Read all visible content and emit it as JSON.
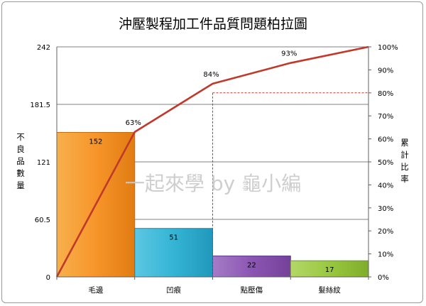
{
  "chart_data": {
    "type": "bar",
    "title": "沖壓製程加工件品質問題柏拉圖",
    "ylabel": "不良品數量",
    "ylabel_right": "累計比率",
    "categories": [
      "毛邊",
      "凹痕",
      "點壓傷",
      "髮絲紋"
    ],
    "series": [
      {
        "kind": "bar",
        "values": [
          152,
          51,
          22,
          17
        ]
      },
      {
        "kind": "line",
        "cumulative_percent": [
          0,
          63,
          84,
          93,
          100
        ],
        "labels": [
          "63%",
          "84%",
          "93%"
        ]
      }
    ],
    "ylim": [
      0,
      242
    ],
    "ylim_right": [
      0,
      100
    ],
    "left_ticks": [
      "0",
      "60.5",
      "121",
      "181.5",
      "242"
    ],
    "right_ticks": [
      "0%",
      "10%",
      "20%",
      "30%",
      "40%",
      "50%",
      "60%",
      "70%",
      "80%",
      "90%",
      "100%"
    ],
    "reference_line_percent": 80,
    "gridlines": true,
    "legend": "none",
    "watermark": "一起來學 by 龜小編",
    "colors": {
      "bars": [
        "#f39624",
        "#35b3d3",
        "#8e58b4",
        "#99c840"
      ],
      "bar_edges": [
        "#c46c10",
        "#1b86a6",
        "#5f3489",
        "#6a9a22"
      ],
      "line": "#c0392b",
      "reference": "#c0392b",
      "grid": "#808080"
    }
  }
}
